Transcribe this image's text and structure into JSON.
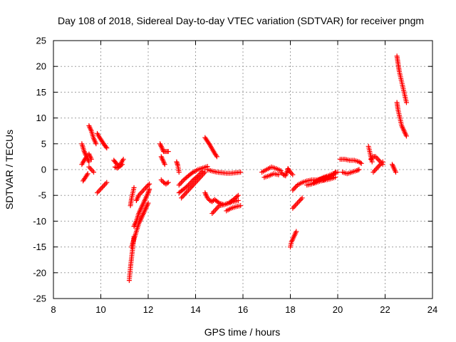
{
  "chart_data": {
    "type": "scatter",
    "title": "Day 108 of 2018, Sidereal Day-to-day VTEC variation (SDTVAR) for receiver pngm",
    "xlabel": "GPS time / hours",
    "ylabel": "SDTVAR / TECUs",
    "xlim": [
      8,
      24
    ],
    "ylim": [
      -25,
      25
    ],
    "xticks": [
      8,
      10,
      12,
      14,
      16,
      18,
      20,
      22,
      24
    ],
    "yticks": [
      -25,
      -20,
      -15,
      -10,
      -5,
      0,
      5,
      10,
      15,
      20,
      25
    ],
    "grid": true,
    "marker": "+",
    "marker_color": "#ff0000",
    "segments": [
      {
        "x": [
          9.2,
          9.3,
          9.4,
          9.5
        ],
        "y": [
          5,
          3.5,
          2.5,
          1.5
        ]
      },
      {
        "x": [
          9.2,
          9.3,
          9.4,
          9.5,
          9.6
        ],
        "y": [
          1,
          1.8,
          2.5,
          3,
          2
        ]
      },
      {
        "x": [
          9.25,
          9.35,
          9.45
        ],
        "y": [
          -2.2,
          -1.5,
          -0.8
        ]
      },
      {
        "x": [
          9.5,
          9.6,
          9.7,
          9.8
        ],
        "y": [
          8.5,
          7.5,
          6,
          5
        ]
      },
      {
        "x": [
          9.5,
          9.6,
          9.7
        ],
        "y": [
          0.5,
          0,
          -0.5
        ]
      },
      {
        "x": [
          9.85,
          9.95,
          10.05,
          10.15,
          10.25
        ],
        "y": [
          7,
          6.2,
          5.5,
          4.8,
          4.2
        ]
      },
      {
        "x": [
          9.85,
          9.95,
          10.05,
          10.15,
          10.25
        ],
        "y": [
          -4.5,
          -4,
          -3.5,
          -3,
          -2.5
        ]
      },
      {
        "x": [
          10.55,
          10.65,
          10.75,
          10.85,
          10.95
        ],
        "y": [
          1.8,
          1.2,
          0.8,
          1.2,
          2
        ]
      },
      {
        "x": [
          10.6,
          10.7,
          10.8,
          10.9
        ],
        "y": [
          0.5,
          0.3,
          0.6,
          1
        ]
      },
      {
        "x": [
          11.2,
          11.25,
          11.3,
          11.35,
          11.4
        ],
        "y": [
          -21.5,
          -19,
          -17,
          -15,
          -13
        ]
      },
      {
        "x": [
          11.25,
          11.3,
          11.35,
          11.4
        ],
        "y": [
          -7,
          -5.5,
          -4.5,
          -3.5
        ]
      },
      {
        "x": [
          11.3,
          11.4,
          11.5,
          11.6,
          11.7,
          11.8,
          11.9,
          12.0
        ],
        "y": [
          -15,
          -13.5,
          -12,
          -10.5,
          -9.5,
          -8.5,
          -7.5,
          -6.5
        ]
      },
      {
        "x": [
          11.4,
          11.5,
          11.6,
          11.7,
          11.8,
          11.9,
          12.0,
          12.05
        ],
        "y": [
          -11,
          -10,
          -8.5,
          -7.5,
          -6.5,
          -5.5,
          -4.5,
          -3.8
        ]
      },
      {
        "x": [
          11.5,
          11.6,
          11.7,
          11.8,
          11.9,
          12.0,
          12.05
        ],
        "y": [
          -6,
          -5,
          -4.5,
          -4,
          -3.5,
          -3,
          -2.8
        ]
      },
      {
        "x": [
          12.5,
          12.55,
          12.6,
          12.65,
          12.75,
          12.85
        ],
        "y": [
          5,
          4.5,
          4,
          3.5,
          3.5,
          3.5
        ]
      },
      {
        "x": [
          12.55,
          12.6,
          12.65,
          12.7
        ],
        "y": [
          2.5,
          2,
          1.5,
          1
        ]
      },
      {
        "x": [
          12.55,
          12.65,
          12.75,
          12.85
        ],
        "y": [
          -2,
          -2.5,
          -2.8,
          -2.5
        ]
      },
      {
        "x": [
          13.2,
          13.25,
          13.3
        ],
        "y": [
          1.5,
          0.8,
          -0.5
        ]
      },
      {
        "x": [
          13.3,
          13.5,
          13.7,
          13.9,
          14.1,
          14.3,
          14.5
        ],
        "y": [
          -3,
          -2,
          -1.2,
          -0.5,
          0,
          0.3,
          0.6
        ]
      },
      {
        "x": [
          13.3,
          13.5,
          13.7,
          13.9,
          14.1,
          14.3
        ],
        "y": [
          -4.5,
          -3.8,
          -3,
          -2,
          -1.2,
          -0.3
        ]
      },
      {
        "x": [
          13.4,
          13.6,
          13.8,
          14.0,
          14.2,
          14.4
        ],
        "y": [
          -5.5,
          -4.5,
          -3.5,
          -2.5,
          -1.5,
          -0.5
        ]
      },
      {
        "x": [
          14.4,
          14.5,
          14.6,
          14.7,
          14.8,
          14.9
        ],
        "y": [
          6.2,
          5.5,
          4.8,
          4,
          3.2,
          2.5
        ]
      },
      {
        "x": [
          14.5,
          14.7,
          14.9,
          15.1,
          15.3,
          15.5,
          15.7,
          15.9
        ],
        "y": [
          0,
          -0.3,
          -0.5,
          -0.6,
          -0.7,
          -0.7,
          -0.6,
          -0.5
        ]
      },
      {
        "x": [
          14.4,
          14.5,
          14.6,
          14.7,
          14.8,
          15.0,
          15.2,
          15.4,
          15.6,
          15.8
        ],
        "y": [
          -4.5,
          -5.5,
          -6,
          -6.2,
          -5.8,
          -6.5,
          -6.8,
          -6.5,
          -5.8,
          -5
        ]
      },
      {
        "x": [
          14.7,
          14.8,
          14.9,
          15.0,
          15.2,
          15.4,
          15.6,
          15.8
        ],
        "y": [
          -8.5,
          -8,
          -7.5,
          -7,
          -6.8,
          -6.5,
          -6.2,
          -6
        ]
      },
      {
        "x": [
          15.3,
          15.5,
          15.7,
          15.9
        ],
        "y": [
          -8,
          -7.5,
          -7.2,
          -7
        ]
      },
      {
        "x": [
          16.8,
          17.0,
          17.2,
          17.4,
          17.6
        ],
        "y": [
          -0.5,
          0,
          0.5,
          0.2,
          -0.2
        ]
      },
      {
        "x": [
          16.9,
          17.1,
          17.3,
          17.5
        ],
        "y": [
          -1.5,
          -1.2,
          -0.8,
          -1
        ]
      },
      {
        "x": [
          17.6,
          17.7,
          17.8,
          17.9,
          18.0,
          18.1
        ],
        "y": [
          -0.5,
          -1,
          -1.2,
          0.2,
          -0.5,
          -1
        ]
      },
      {
        "x": [
          18.0,
          18.05,
          18.1,
          18.15,
          18.2,
          18.25
        ],
        "y": [
          -15,
          -14,
          -13.5,
          -13,
          -12.5,
          -12
        ]
      },
      {
        "x": [
          18.1,
          18.2,
          18.3,
          18.4,
          18.5
        ],
        "y": [
          -7.5,
          -7,
          -6.5,
          -6,
          -5.5
        ]
      },
      {
        "x": [
          18.1,
          18.3,
          18.5,
          18.7,
          18.9,
          19.1,
          19.3,
          19.5
        ],
        "y": [
          -4,
          -3,
          -2.5,
          -2.2,
          -2,
          -2,
          -1.8,
          -1.5
        ]
      },
      {
        "x": [
          18.7,
          18.9,
          19.1,
          19.3,
          19.5,
          19.7,
          19.9
        ],
        "y": [
          -3,
          -2.8,
          -2.5,
          -2.2,
          -2,
          -1.8,
          -1.5
        ]
      },
      {
        "x": [
          19.0,
          19.2,
          19.4,
          19.6,
          19.8,
          20.0
        ],
        "y": [
          -2.5,
          -2,
          -1.5,
          -1.2,
          -0.8,
          -0.5
        ]
      },
      {
        "x": [
          19.4,
          19.6,
          19.8,
          19.9
        ],
        "y": [
          -2,
          -1.5,
          -1,
          -0.5
        ]
      },
      {
        "x": [
          20.1,
          20.3,
          20.5,
          20.7,
          20.9,
          21.0
        ],
        "y": [
          2,
          2,
          1.8,
          1.8,
          1.5,
          1.2
        ]
      },
      {
        "x": [
          20.2,
          20.4,
          20.6,
          20.8,
          20.9
        ],
        "y": [
          -0.5,
          -0.8,
          -0.5,
          -0.2,
          0
        ]
      },
      {
        "x": [
          21.3,
          21.35,
          21.4,
          21.45
        ],
        "y": [
          4.5,
          3.5,
          2.5,
          1.5
        ]
      },
      {
        "x": [
          21.4,
          21.5,
          21.6,
          21.7,
          21.8,
          21.9
        ],
        "y": [
          2,
          2.5,
          2.5,
          2,
          1.5,
          1
        ]
      },
      {
        "x": [
          21.5,
          21.6,
          21.7,
          21.8,
          21.9
        ],
        "y": [
          -0.5,
          0,
          0.5,
          1,
          1.5
        ]
      },
      {
        "x": [
          22.3,
          22.35,
          22.4,
          22.45
        ],
        "y": [
          1,
          0.5,
          0,
          -0.5
        ]
      },
      {
        "x": [
          22.5,
          22.55,
          22.6,
          22.65,
          22.7,
          22.75,
          22.8,
          22.85,
          22.9
        ],
        "y": [
          22,
          20.5,
          19,
          18,
          17,
          16,
          15,
          14,
          13
        ]
      },
      {
        "x": [
          22.5,
          22.55,
          22.6,
          22.65,
          22.7,
          22.75,
          22.8,
          22.85,
          22.9
        ],
        "y": [
          13,
          11.5,
          10.5,
          9.5,
          8.5,
          8,
          7.5,
          7,
          6.5
        ]
      }
    ]
  }
}
